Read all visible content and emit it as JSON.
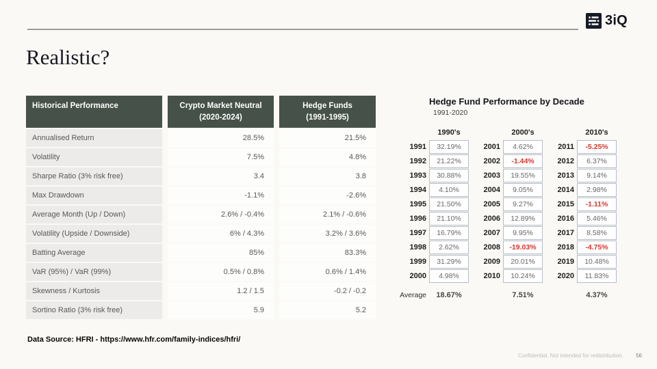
{
  "logo": {
    "text": "3iQ"
  },
  "title": "Realistic?",
  "performance_table": {
    "headers": {
      "col1": "Historical Performance",
      "col2_line1": "Crypto Market Neutral",
      "col2_line2": "(2020-2024)",
      "col3_line1": "Hedge Funds",
      "col3_line2": "(1991-1995)"
    },
    "rows": [
      {
        "metric": "Annualised Return",
        "crypto": "28.5%",
        "hedge": "21.5%"
      },
      {
        "metric": "Volatility",
        "crypto": "7.5%",
        "hedge": "4.8%"
      },
      {
        "metric": "Sharpe Ratio (3% risk free)",
        "crypto": "3.4",
        "hedge": "3.8"
      },
      {
        "metric": "Max Drawdown",
        "crypto": "-1.1%",
        "hedge": "-2.6%"
      },
      {
        "metric": "Average Month (Up / Down)",
        "crypto": "2.6% / -0.4%",
        "hedge": "2.1% / -0.6%"
      },
      {
        "metric": "Volatility (Upside / Downside)",
        "crypto": "6% / 4.3%",
        "hedge": "3.2% / 3.6%"
      },
      {
        "metric": "Batting Average",
        "crypto": "85%",
        "hedge": "83.3%"
      },
      {
        "metric": "VaR (95%) / VaR (99%)",
        "crypto": "0.5% / 0.8%",
        "hedge": "0.6% / 1.4%"
      },
      {
        "metric": "Skewness / Kurtosis",
        "crypto": "1.2 / 1.5",
        "hedge": "-0.2 / -0.2"
      },
      {
        "metric": "Sortino Ratio (3% risk free)",
        "crypto": "5.9",
        "hedge": "5.2"
      }
    ]
  },
  "decade_chart": {
    "title": "Hedge Fund Performance by Decade",
    "subtitle": "1991-2020",
    "average_label": "Average",
    "decades": [
      {
        "label": "1990's",
        "average": "18.67%",
        "rows": [
          {
            "year": "1991",
            "value": "32.19%",
            "negative": false
          },
          {
            "year": "1992",
            "value": "21.22%",
            "negative": false
          },
          {
            "year": "1993",
            "value": "30.88%",
            "negative": false
          },
          {
            "year": "1994",
            "value": "4.10%",
            "negative": false
          },
          {
            "year": "1995",
            "value": "21.50%",
            "negative": false
          },
          {
            "year": "1996",
            "value": "21.10%",
            "negative": false
          },
          {
            "year": "1997",
            "value": "16.79%",
            "negative": false
          },
          {
            "year": "1998",
            "value": "2.62%",
            "negative": false
          },
          {
            "year": "1999",
            "value": "31.29%",
            "negative": false
          },
          {
            "year": "2000",
            "value": "4.98%",
            "negative": false
          }
        ]
      },
      {
        "label": "2000's",
        "average": "7.51%",
        "rows": [
          {
            "year": "2001",
            "value": "4.62%",
            "negative": false
          },
          {
            "year": "2002",
            "value": "-1.44%",
            "negative": true
          },
          {
            "year": "2003",
            "value": "19.55%",
            "negative": false
          },
          {
            "year": "2004",
            "value": "9.05%",
            "negative": false
          },
          {
            "year": "2005",
            "value": "9.27%",
            "negative": false
          },
          {
            "year": "2006",
            "value": "12.89%",
            "negative": false
          },
          {
            "year": "2007",
            "value": "9.95%",
            "negative": false
          },
          {
            "year": "2008",
            "value": "-19.03%",
            "negative": true
          },
          {
            "year": "2009",
            "value": "20.01%",
            "negative": false
          },
          {
            "year": "2010",
            "value": "10.24%",
            "negative": false
          }
        ]
      },
      {
        "label": "2010's",
        "average": "4.37%",
        "rows": [
          {
            "year": "2011",
            "value": "-5.25%",
            "negative": true
          },
          {
            "year": "2012",
            "value": "6.37%",
            "negative": false
          },
          {
            "year": "2013",
            "value": "9.14%",
            "negative": false
          },
          {
            "year": "2014",
            "value": "2.98%",
            "negative": false
          },
          {
            "year": "2015",
            "value": "-1.11%",
            "negative": true
          },
          {
            "year": "2016",
            "value": "5.46%",
            "negative": false
          },
          {
            "year": "2017",
            "value": "8.58%",
            "negative": false
          },
          {
            "year": "2018",
            "value": "-4.75%",
            "negative": true
          },
          {
            "year": "2019",
            "value": "10.48%",
            "negative": false
          },
          {
            "year": "2020",
            "value": "11.83%",
            "negative": false
          }
        ]
      }
    ]
  },
  "footer": {
    "data_source": "Data Source: HFRI - https://www.hfr.com/family-indices/hfri/",
    "confidential": "Confidential. Not intended for redistribution.",
    "page_number": "56"
  },
  "colors": {
    "table_header_bg": "#465149",
    "negative_value": "#da362c",
    "cell_border": "#b4bdc7"
  }
}
